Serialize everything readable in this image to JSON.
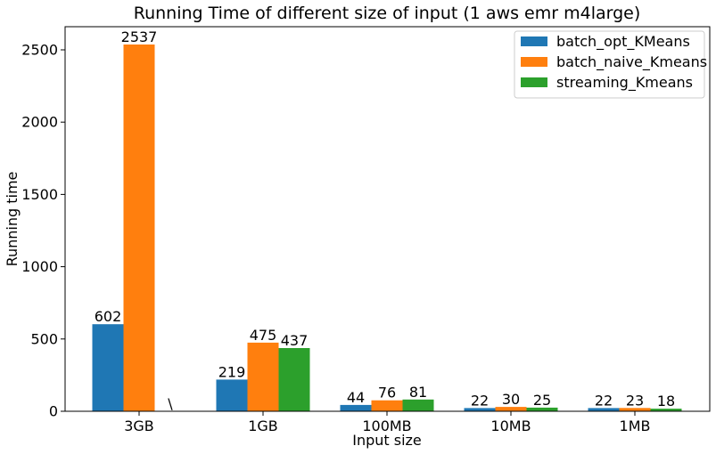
{
  "chart_data": {
    "type": "bar",
    "title": "Running Time of different size of input (1 aws emr m4large)",
    "xlabel": "Input size",
    "ylabel": "Running time",
    "categories": [
      "3GB",
      "1GB",
      "100MB",
      "10MB",
      "1MB"
    ],
    "ylim": [
      0,
      2660
    ],
    "yticks": [
      0,
      500,
      1000,
      1500,
      2000,
      2500
    ],
    "grid": false,
    "legend_position": "top-right",
    "series": [
      {
        "name": "batch_opt_KMeans",
        "color": "#1f77b4",
        "values": [
          602,
          219,
          44,
          22,
          22
        ],
        "labels": [
          "602",
          "219",
          "44",
          "22",
          "22"
        ]
      },
      {
        "name": "batch_naive_Kmeans",
        "color": "#ff7f0e",
        "values": [
          2537,
          475,
          76,
          30,
          23
        ],
        "labels": [
          "2537",
          "475",
          "76",
          "30",
          "23"
        ]
      },
      {
        "name": "streaming_Kmeans",
        "color": "#2ca02c",
        "values": [
          0,
          437,
          81,
          25,
          18
        ],
        "labels": [
          "\\",
          "437",
          "81",
          "25",
          "18"
        ]
      }
    ]
  }
}
